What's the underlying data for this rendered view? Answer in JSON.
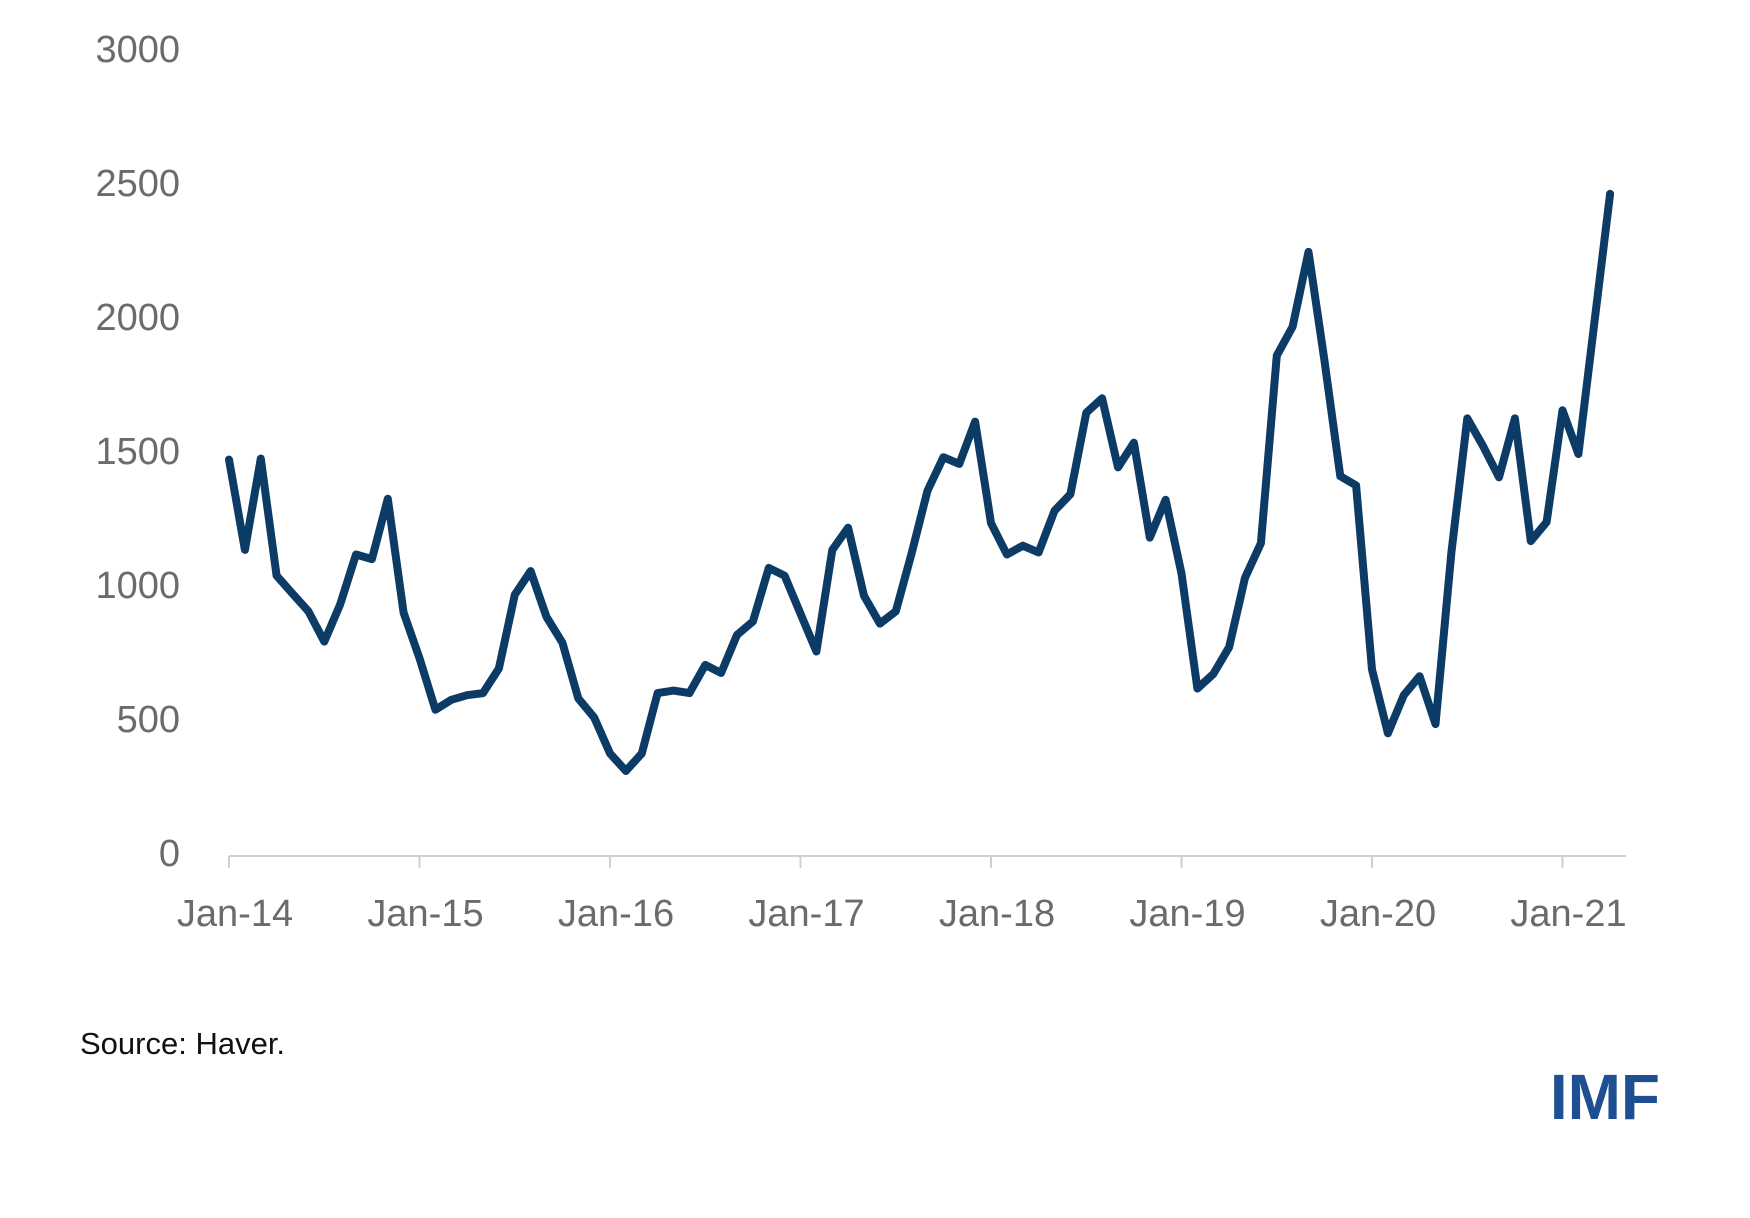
{
  "chart_data": {
    "type": "line",
    "x": [
      "2014-01",
      "2014-02",
      "2014-03",
      "2014-04",
      "2014-05",
      "2014-06",
      "2014-07",
      "2014-08",
      "2014-09",
      "2014-10",
      "2014-11",
      "2014-12",
      "2015-01",
      "2015-02",
      "2015-03",
      "2015-04",
      "2015-05",
      "2015-06",
      "2015-07",
      "2015-08",
      "2015-09",
      "2015-10",
      "2015-11",
      "2015-12",
      "2016-01",
      "2016-02",
      "2016-03",
      "2016-04",
      "2016-05",
      "2016-06",
      "2016-07",
      "2016-08",
      "2016-09",
      "2016-10",
      "2016-11",
      "2016-12",
      "2017-01",
      "2017-02",
      "2017-03",
      "2017-04",
      "2017-05",
      "2017-06",
      "2017-07",
      "2017-08",
      "2017-09",
      "2017-10",
      "2017-11",
      "2017-12",
      "2018-01",
      "2018-02",
      "2018-03",
      "2018-04",
      "2018-05",
      "2018-06",
      "2018-07",
      "2018-08",
      "2018-09",
      "2018-10",
      "2018-11",
      "2018-12",
      "2019-01",
      "2019-02",
      "2019-03",
      "2019-04",
      "2019-05",
      "2019-06",
      "2019-07",
      "2019-08",
      "2019-09",
      "2019-10",
      "2019-11",
      "2019-12",
      "2020-01",
      "2020-02",
      "2020-03",
      "2020-04",
      "2020-05",
      "2020-06",
      "2020-07",
      "2020-08",
      "2020-09",
      "2020-10",
      "2020-11",
      "2020-12",
      "2021-01",
      "2021-02",
      "2021-03",
      "2021-04"
    ],
    "series": [
      {
        "color": "#0c3b66",
        "values": [
          1479,
          1142,
          1483,
          1046,
          979,
          913,
          800,
          938,
          1125,
          1108,
          1333,
          908,
          738,
          546,
          583,
          600,
          608,
          700,
          975,
          1063,
          892,
          796,
          588,
          517,
          383,
          317,
          383,
          608,
          617,
          608,
          713,
          683,
          825,
          875,
          1075,
          1046,
          904,
          763,
          1142,
          1225,
          971,
          867,
          913,
          1129,
          1363,
          1488,
          1463,
          1621,
          1242,
          1125,
          1158,
          1133,
          1288,
          1350,
          1654,
          1708,
          1450,
          1542,
          1188,
          1329,
          1054,
          625,
          679,
          779,
          1038,
          1167,
          1867,
          1975,
          2254,
          1850,
          1417,
          1383,
          696,
          458,
          600,
          671,
          492,
          1133,
          1633,
          1529,
          1413,
          1633,
          1175,
          1246,
          1663,
          1500,
          1988,
          2471
        ]
      }
    ],
    "xlim": [
      "2014-01",
      "2021-05"
    ],
    "xticks": [
      {
        "value": "2014-01",
        "label": "Jan-14"
      },
      {
        "value": "2015-01",
        "label": "Jan-15"
      },
      {
        "value": "2016-01",
        "label": "Jan-16"
      },
      {
        "value": "2017-01",
        "label": "Jan-17"
      },
      {
        "value": "2018-01",
        "label": "Jan-18"
      },
      {
        "value": "2019-01",
        "label": "Jan-19"
      },
      {
        "value": "2020-01",
        "label": "Jan-20"
      },
      {
        "value": "2021-01",
        "label": "Jan-21"
      }
    ],
    "ylim": [
      0,
      3000
    ],
    "yticks": [
      0,
      500,
      1000,
      1500,
      2000,
      2500,
      3000
    ],
    "grid": false,
    "source": "Source: Haver.",
    "logo": "IMF"
  }
}
